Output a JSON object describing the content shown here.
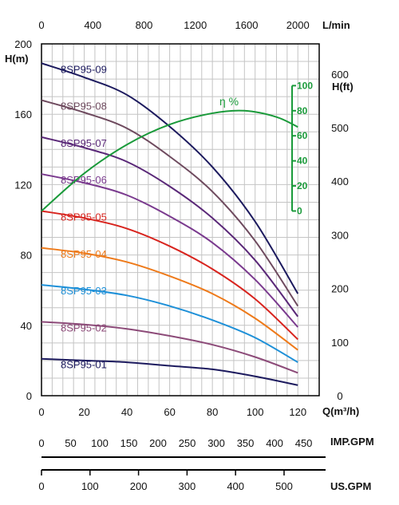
{
  "chart_data": {
    "type": "line",
    "title": "",
    "axes": {
      "q_m3h": {
        "label": "Q(m³/h)",
        "range": [
          0,
          130
        ],
        "ticks": [
          0,
          20,
          40,
          60,
          80,
          100,
          120
        ]
      },
      "q_lmin": {
        "label": "L/min",
        "range": [
          0,
          2166.7
        ],
        "ticks": [
          0,
          400,
          800,
          1200,
          1600,
          2000
        ]
      },
      "head_m": {
        "label": "H(m)",
        "range": [
          0,
          200
        ],
        "ticks": [
          0,
          40,
          80,
          120,
          160,
          200
        ]
      },
      "head_ft": {
        "label": "H(ft)",
        "range": [
          0,
          656.2
        ],
        "ticks": [
          0,
          100,
          200,
          300,
          400,
          500,
          600
        ]
      },
      "efficiency": {
        "label": "η %",
        "range": [
          0,
          100
        ],
        "ticks": [
          0,
          20,
          40,
          60,
          80,
          100
        ]
      },
      "imp_gpm": {
        "label": "IMP.GPM",
        "range": [
          0,
          476.6
        ],
        "ticks": [
          0,
          50,
          100,
          150,
          200,
          250,
          300,
          350,
          400,
          450
        ]
      },
      "us_gpm": {
        "label": "US.GPM",
        "range": [
          0,
          572.4
        ],
        "ticks": [
          0,
          100,
          200,
          300,
          400,
          500
        ]
      }
    },
    "grid": true,
    "series": [
      {
        "name": "8SP95-01",
        "color": "#1c1a5e",
        "x": [
          0,
          20,
          40,
          60,
          80,
          100,
          120
        ],
        "y": [
          21,
          20,
          19,
          17,
          15,
          11,
          6
        ]
      },
      {
        "name": "8SP95-02",
        "color": "#8c4a78",
        "x": [
          0,
          20,
          40,
          60,
          80,
          100,
          120
        ],
        "y": [
          42,
          40.5,
          38,
          34,
          29,
          22,
          13
        ]
      },
      {
        "name": "8SP95-03",
        "color": "#1e90d8",
        "x": [
          0,
          20,
          40,
          60,
          80,
          100,
          120
        ],
        "y": [
          63,
          60.5,
          57,
          51,
          43,
          33,
          19
        ]
      },
      {
        "name": "8SP95-04",
        "color": "#ee7a1a",
        "x": [
          0,
          20,
          40,
          60,
          80,
          100,
          120
        ],
        "y": [
          84,
          81,
          76,
          68,
          58,
          44,
          26
        ]
      },
      {
        "name": "8SP95-05",
        "color": "#d8241e",
        "x": [
          0,
          20,
          40,
          60,
          80,
          100,
          120
        ],
        "y": [
          105,
          101,
          95,
          85,
          72,
          55,
          32
        ]
      },
      {
        "name": "8SP95-06",
        "color": "#7a3a8e",
        "x": [
          0,
          20,
          40,
          60,
          80,
          100,
          120
        ],
        "y": [
          126,
          121,
          114,
          102,
          87,
          66,
          39
        ]
      },
      {
        "name": "8SP95-07",
        "color": "#5a2878",
        "x": [
          0,
          20,
          40,
          60,
          80,
          100,
          120
        ],
        "y": [
          147,
          141,
          133,
          119,
          101,
          77,
          45
        ]
      },
      {
        "name": "8SP95-08",
        "color": "#6e4a5e",
        "x": [
          0,
          20,
          40,
          60,
          80,
          100,
          120
        ],
        "y": [
          168,
          161,
          152,
          136,
          116,
          88,
          51
        ]
      },
      {
        "name": "8SP95-09",
        "color": "#1c1a5e",
        "x": [
          0,
          20,
          40,
          60,
          80,
          100,
          120
        ],
        "y": [
          189,
          181,
          171,
          153,
          130,
          99,
          58
        ]
      }
    ],
    "efficiency_curve": {
      "name": "η %",
      "color": "#1a9a3a",
      "x": [
        0,
        20,
        40,
        60,
        80,
        95,
        110,
        120
      ],
      "y": [
        0,
        30,
        53,
        69,
        78,
        80,
        75,
        67
      ]
    }
  }
}
